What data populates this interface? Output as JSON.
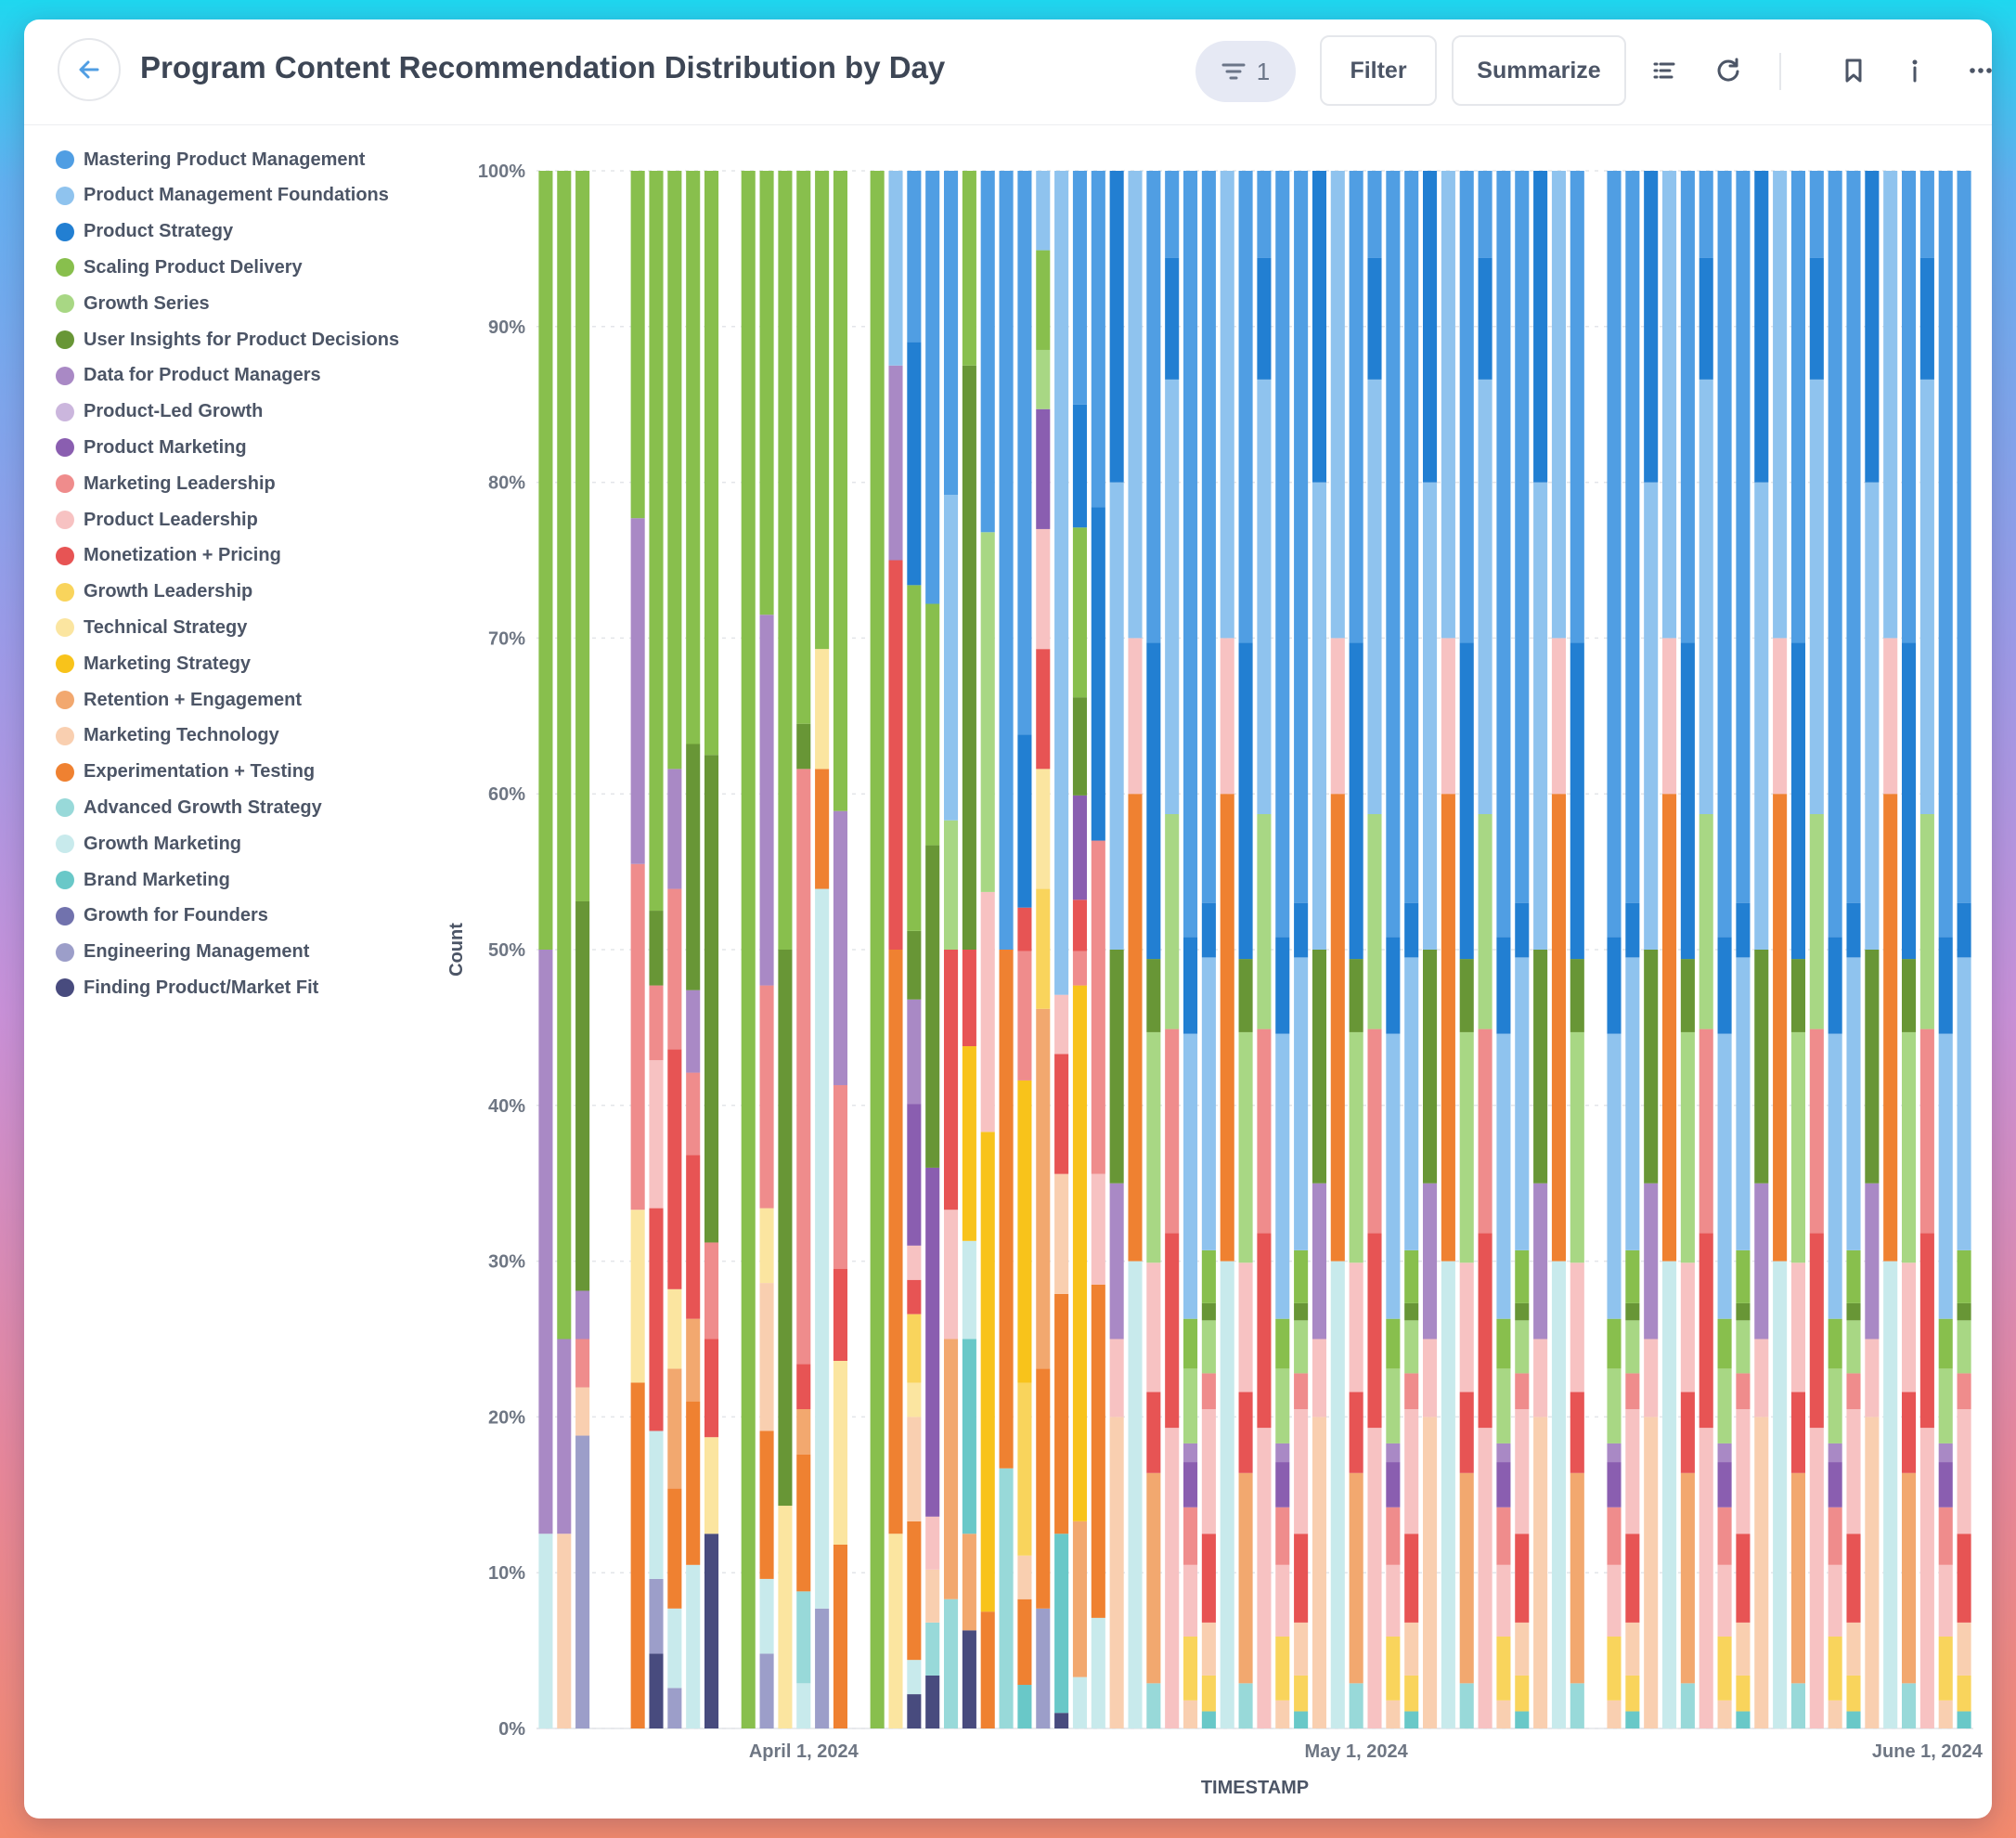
{
  "header": {
    "title": "Program Content Recommendation Distribution by Day",
    "filter_count": "1",
    "filter_label": "Filter",
    "summarize_label": "Summarize"
  },
  "icons": [
    "arrow-left-icon",
    "filter-icon",
    "bar-list-icon",
    "refresh-icon",
    "bookmark-icon",
    "info-icon",
    "more-icon"
  ],
  "chart_data": {
    "type": "bar",
    "stacked": "100%",
    "title": "Program Content Recommendation Distribution by Day",
    "xlabel": "TIMESTAMP",
    "ylabel": "Count",
    "ylim": [
      0,
      100
    ],
    "y_ticks": [
      "0%",
      "10%",
      "20%",
      "30%",
      "40%",
      "50%",
      "60%",
      "70%",
      "80%",
      "90%",
      "100%"
    ],
    "x_ticks": [
      "April 1, 2024",
      "May 1, 2024",
      "June 1, 2024"
    ],
    "x_range": [
      "2024-03-18",
      "2024-06-03"
    ],
    "legend_position": "left",
    "series": [
      {
        "name": "Mastering Product Management",
        "color": "#509EE3"
      },
      {
        "name": "Product Management Foundations",
        "color": "#8FC3EE"
      },
      {
        "name": "Product Strategy",
        "color": "#227FD2"
      },
      {
        "name": "Scaling Product Delivery",
        "color": "#88BF4D"
      },
      {
        "name": "Growth Series",
        "color": "#A8D784"
      },
      {
        "name": "User Insights for Product Decisions",
        "color": "#689636"
      },
      {
        "name": "Data for Product Managers",
        "color": "#A989C5"
      },
      {
        "name": "Product-Led Growth",
        "color": "#CBB6DD"
      },
      {
        "name": "Product Marketing",
        "color": "#8A5EB0"
      },
      {
        "name": "Marketing Leadership",
        "color": "#EF8C8C"
      },
      {
        "name": "Product Leadership",
        "color": "#F7C2C2"
      },
      {
        "name": "Monetization + Pricing",
        "color": "#E75454"
      },
      {
        "name": "Growth Leadership",
        "color": "#F9D45C"
      },
      {
        "name": "Technical Strategy",
        "color": "#FBE5A0"
      },
      {
        "name": "Marketing Strategy",
        "color": "#F8C31B"
      },
      {
        "name": "Retention + Engagement",
        "color": "#F2A86F"
      },
      {
        "name": "Marketing Technology",
        "color": "#F9CFB0"
      },
      {
        "name": "Experimentation + Testing",
        "color": "#EF8131"
      },
      {
        "name": "Advanced Growth Strategy",
        "color": "#98D9D9"
      },
      {
        "name": "Growth Marketing",
        "color": "#C8EAEC"
      },
      {
        "name": "Brand Marketing",
        "color": "#69C8C8"
      },
      {
        "name": "Growth for Founders",
        "color": "#7172AD"
      },
      {
        "name": "Engineering Management",
        "color": "#9C9EC9"
      },
      {
        "name": "Finding Product/Market Fit",
        "color": "#484B7E"
      }
    ],
    "bars": [
      {
        "date": "2024-03-18",
        "segments": [
          [
            19,
            12.5
          ],
          [
            6,
            37.5
          ],
          [
            3,
            50
          ]
        ]
      },
      {
        "date": "2024-03-19",
        "segments": [
          [
            16,
            12.5
          ],
          [
            6,
            12.5
          ],
          [
            3,
            75
          ]
        ]
      },
      {
        "date": "2024-03-20",
        "segments": [
          [
            22,
            18.8
          ],
          [
            16,
            3.1
          ],
          [
            9,
            3.1
          ],
          [
            6,
            3.1
          ],
          [
            5,
            25
          ],
          [
            3,
            46.9
          ]
        ]
      },
      {
        "date": "2024-03-23",
        "segments": [
          [
            17,
            22.2
          ],
          [
            13,
            11.1
          ],
          [
            9,
            22.2
          ],
          [
            6,
            22.2
          ],
          [
            3,
            22.3
          ]
        ]
      },
      {
        "date": "2024-03-24",
        "segments": [
          [
            23,
            4.8
          ],
          [
            22,
            4.8
          ],
          [
            19,
            9.5
          ],
          [
            11,
            14.3
          ],
          [
            10,
            9.5
          ],
          [
            9,
            4.8
          ],
          [
            5,
            4.8
          ],
          [
            3,
            52.3
          ]
        ]
      },
      {
        "date": "2024-03-25",
        "segments": [
          [
            22,
            2.6
          ],
          [
            19,
            5.1
          ],
          [
            17,
            7.7
          ],
          [
            15,
            7.7
          ],
          [
            13,
            5.1
          ],
          [
            11,
            15.4
          ],
          [
            9,
            10.3
          ],
          [
            6,
            7.7
          ],
          [
            3,
            38.4
          ]
        ]
      },
      {
        "date": "2024-03-26",
        "segments": [
          [
            19,
            10.5
          ],
          [
            17,
            10.5
          ],
          [
            15,
            5.3
          ],
          [
            11,
            10.5
          ],
          [
            9,
            5.3
          ],
          [
            6,
            5.3
          ],
          [
            5,
            15.8
          ],
          [
            3,
            36.8
          ]
        ]
      },
      {
        "date": "2024-03-27",
        "segments": [
          [
            23,
            12.5
          ],
          [
            13,
            6.2
          ],
          [
            11,
            6.3
          ],
          [
            9,
            6.2
          ],
          [
            5,
            31.3
          ],
          [
            3,
            37.5
          ]
        ]
      },
      {
        "date": "2024-03-29",
        "segments": [
          [
            3,
            100
          ]
        ]
      },
      {
        "date": "2024-03-30",
        "segments": [
          [
            22,
            4.8
          ],
          [
            19,
            4.8
          ],
          [
            17,
            9.5
          ],
          [
            16,
            9.5
          ],
          [
            13,
            4.8
          ],
          [
            9,
            14.3
          ],
          [
            6,
            23.8
          ],
          [
            3,
            28.5
          ]
        ]
      },
      {
        "date": "2024-03-31",
        "segments": [
          [
            13,
            14.3
          ],
          [
            5,
            35.7
          ],
          [
            3,
            50
          ]
        ]
      },
      {
        "date": "2024-04-01",
        "segments": [
          [
            19,
            2.9
          ],
          [
            18,
            5.9
          ],
          [
            17,
            8.8
          ],
          [
            15,
            2.9
          ],
          [
            11,
            2.9
          ],
          [
            9,
            38.2
          ],
          [
            5,
            2.9
          ],
          [
            3,
            35.5
          ]
        ]
      },
      {
        "date": "2024-04-02",
        "segments": [
          [
            22,
            7.7
          ],
          [
            19,
            46.2
          ],
          [
            17,
            7.7
          ],
          [
            13,
            7.7
          ],
          [
            3,
            30.7
          ]
        ]
      },
      {
        "date": "2024-04-03",
        "segments": [
          [
            17,
            11.8
          ],
          [
            13,
            11.8
          ],
          [
            11,
            5.9
          ],
          [
            9,
            11.8
          ],
          [
            6,
            17.6
          ],
          [
            3,
            41.1
          ]
        ]
      },
      {
        "date": "2024-04-05",
        "segments": [
          [
            3,
            100
          ]
        ]
      },
      {
        "date": "2024-04-06",
        "segments": [
          [
            13,
            12.5
          ],
          [
            17,
            37.5
          ],
          [
            11,
            25
          ],
          [
            6,
            12.5
          ],
          [
            1,
            12.5
          ]
        ]
      },
      {
        "date": "2024-04-07",
        "segments": [
          [
            23,
            2.2
          ],
          [
            19,
            2.2
          ],
          [
            17,
            8.9
          ],
          [
            16,
            6.7
          ],
          [
            13,
            2.2
          ],
          [
            12,
            4.4
          ],
          [
            11,
            2.2
          ],
          [
            10,
            2.2
          ],
          [
            8,
            9.1
          ],
          [
            6,
            6.7
          ],
          [
            5,
            4.4
          ],
          [
            3,
            22.2
          ],
          [
            2,
            15.6
          ],
          [
            0,
            11.1
          ]
        ]
      },
      {
        "date": "2024-04-08",
        "segments": [
          [
            23,
            3.4
          ],
          [
            18,
            3.4
          ],
          [
            16,
            3.4
          ],
          [
            10,
            3.4
          ],
          [
            8,
            22.4
          ],
          [
            5,
            20.7
          ],
          [
            3,
            15.5
          ],
          [
            0,
            27.8
          ]
        ]
      },
      {
        "date": "2024-04-09",
        "segments": [
          [
            18,
            8.3
          ],
          [
            15,
            16.7
          ],
          [
            10,
            8.3
          ],
          [
            11,
            16.7
          ],
          [
            4,
            8.3
          ],
          [
            1,
            20.9
          ],
          [
            0,
            20.8
          ]
        ]
      },
      {
        "date": "2024-04-10",
        "segments": [
          [
            23,
            6.3
          ],
          [
            15,
            6.2
          ],
          [
            20,
            12.5
          ],
          [
            19,
            6.3
          ],
          [
            14,
            12.5
          ],
          [
            11,
            6.2
          ],
          [
            5,
            37.5
          ],
          [
            3,
            12.5
          ]
        ]
      },
      {
        "date": "2024-04-11",
        "segments": [
          [
            17,
            7.5
          ],
          [
            14,
            30.8
          ],
          [
            10,
            15.4
          ],
          [
            4,
            23.1
          ],
          [
            0,
            23.2
          ]
        ]
      },
      {
        "date": "2024-04-12",
        "segments": [
          [
            18,
            16.7
          ],
          [
            17,
            33.3
          ],
          [
            0,
            50
          ]
        ]
      },
      {
        "date": "2024-04-13",
        "segments": [
          [
            20,
            2.8
          ],
          [
            17,
            5.5
          ],
          [
            16,
            2.8
          ],
          [
            12,
            11.1
          ],
          [
            14,
            19.4
          ],
          [
            9,
            8.3
          ],
          [
            11,
            2.8
          ],
          [
            2,
            11.1
          ],
          [
            0,
            36.2
          ]
        ]
      },
      {
        "date": "2024-04-14",
        "segments": [
          [
            22,
            7.7
          ],
          [
            17,
            15.4
          ],
          [
            15,
            23.1
          ],
          [
            12,
            7.7
          ],
          [
            13,
            7.7
          ],
          [
            11,
            7.7
          ],
          [
            10,
            7.7
          ],
          [
            8,
            7.7
          ],
          [
            4,
            3.8
          ],
          [
            3,
            6.4
          ],
          [
            1,
            5.1
          ]
        ]
      },
      {
        "date": "2024-04-15",
        "segments": [
          [
            23,
            1.0
          ],
          [
            20,
            11.5
          ],
          [
            17,
            15.4
          ],
          [
            16,
            7.7
          ],
          [
            11,
            7.7
          ],
          [
            10,
            3.8
          ],
          [
            1,
            52.9
          ]
        ]
      },
      {
        "date": "2024-04-16",
        "segments": [
          [
            19,
            3.3
          ],
          [
            15,
            10
          ],
          [
            14,
            34.4
          ],
          [
            9,
            2.2
          ],
          [
            11,
            3.3
          ],
          [
            8,
            6.7
          ],
          [
            5,
            6.3
          ],
          [
            3,
            10.9
          ],
          [
            2,
            7.9
          ],
          [
            0,
            15
          ]
        ]
      },
      {
        "date": "2024-04-17",
        "segments": [
          [
            19,
            7.1
          ],
          [
            17,
            21.4
          ],
          [
            10,
            7.1
          ],
          [
            9,
            21.4
          ],
          [
            2,
            21.4
          ],
          [
            0,
            21.6
          ]
        ]
      },
      {
        "date": "2024-04-18",
        "segments": [
          [
            16,
            20
          ],
          [
            10,
            5
          ],
          [
            6,
            10
          ],
          [
            5,
            15
          ],
          [
            1,
            30
          ],
          [
            2,
            20
          ]
        ]
      },
      {
        "date": "2024-04-19",
        "segments": [
          [
            19,
            30
          ],
          [
            17,
            30
          ],
          [
            10,
            10
          ],
          [
            1,
            30
          ]
        ]
      },
      {
        "date": "2024-04-20",
        "segments": [
          [
            18,
            2.9
          ],
          [
            15,
            13.5
          ],
          [
            11,
            5.2
          ],
          [
            10,
            8.3
          ],
          [
            4,
            14.8
          ],
          [
            5,
            4.7
          ],
          [
            2,
            20.3
          ],
          [
            0,
            30.3
          ]
        ]
      },
      {
        "date": "2024-04-21",
        "segments": [
          [
            10,
            19.3
          ],
          [
            11,
            12.5
          ],
          [
            9,
            13.1
          ],
          [
            4,
            13.8
          ],
          [
            1,
            27.9
          ],
          [
            2,
            7.8
          ],
          [
            0,
            5.6
          ]
        ]
      },
      {
        "date": "2024-04-22",
        "segments": [
          [
            16,
            1.8
          ],
          [
            12,
            4.1
          ],
          [
            10,
            4.6
          ],
          [
            9,
            3.7
          ],
          [
            8,
            2.9
          ],
          [
            6,
            1.2
          ],
          [
            4,
            4.8
          ],
          [
            3,
            3.2
          ],
          [
            1,
            18.3
          ],
          [
            2,
            6.2
          ],
          [
            0,
            49.2
          ]
        ]
      },
      {
        "date": "2024-04-23",
        "segments": [
          [
            20,
            1.1
          ],
          [
            12,
            2.3
          ],
          [
            16,
            3.4
          ],
          [
            11,
            5.7
          ],
          [
            10,
            8.0
          ],
          [
            9,
            2.3
          ],
          [
            4,
            3.4
          ],
          [
            5,
            1.1
          ],
          [
            3,
            3.4
          ],
          [
            1,
            18.8
          ],
          [
            2,
            3.5
          ],
          [
            0,
            47
          ]
        ]
      }
    ],
    "notes": "Later May and June bars omitted from detailed segment list are rendered from this representative sample pattern."
  }
}
